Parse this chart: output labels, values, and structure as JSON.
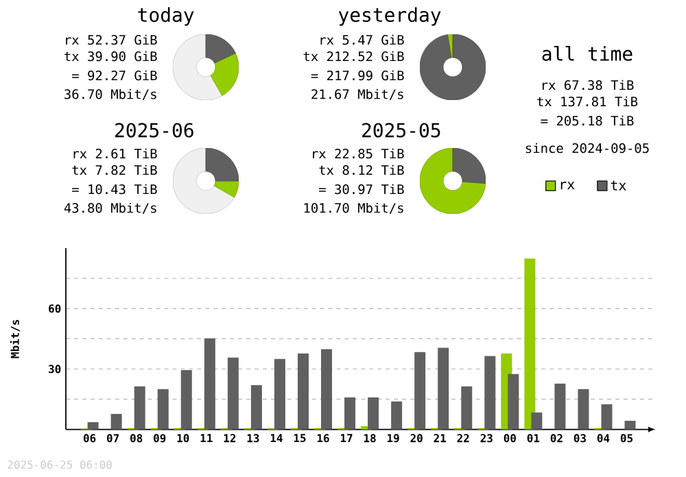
{
  "chart_data": [
    {
      "type": "other",
      "title": "today",
      "annotations": [
        "rx 52.37 GiB",
        "tx 39.90 GiB",
        "= 92.27 GiB",
        "36.70 Mbit/s"
      ]
    },
    {
      "type": "donut",
      "categories": [
        null,
        null,
        null
      ],
      "values": [
        58.3,
        23.7,
        18.0
      ],
      "colors": [
        "#f0f0f0",
        "#94cc00",
        "#606060"
      ]
    },
    {
      "type": "other",
      "title": "yesterday",
      "annotations": [
        "rx 5.47 GiB",
        "tx 212.52 GiB",
        "= 217.99 GiB",
        "21.67 Mbit/s"
      ]
    },
    {
      "type": "donut",
      "categories": [
        null,
        null
      ],
      "values": [
        2.5,
        97.5
      ],
      "colors": [
        "#94cc00",
        "#606060"
      ]
    },
    {
      "type": "other",
      "title": "all time",
      "annotations": [
        "rx 67.38 TiB",
        "tx 137.81 TiB",
        "= 205.18 TiB",
        "since 2024-09-05"
      ]
    },
    {
      "type": "other",
      "title": "2025-06",
      "annotations": [
        "rx 2.61 TiB",
        "tx 7.82 TiB",
        "= 10.43 TiB",
        "43.80 Mbit/s"
      ]
    },
    {
      "type": "donut",
      "categories": [
        null,
        null,
        null
      ],
      "values": [
        66.7,
        8.3,
        25.0
      ],
      "colors": [
        "#f0f0f0",
        "#94cc00",
        "#606060"
      ]
    },
    {
      "type": "other",
      "title": "2025-05",
      "annotations": [
        "rx 22.85 TiB",
        "tx 8.12 TiB",
        "= 30.97 TiB",
        "101.70 Mbit/s"
      ]
    },
    {
      "type": "donut",
      "categories": [
        null,
        null
      ],
      "values": [
        73.8,
        26.2
      ],
      "colors": [
        "#94cc00",
        "#606060"
      ]
    },
    {
      "type": "bar",
      "ylabel": "Mbit/s",
      "categories": [
        "06",
        "07",
        "08",
        "09",
        "10",
        "11",
        "12",
        "13",
        "14",
        "15",
        "16",
        "17",
        "18",
        "19",
        "20",
        "21",
        "22",
        "23",
        "00",
        "01",
        "02",
        "03",
        "04",
        "05"
      ],
      "series": [
        {
          "name": "rx",
          "color": "#94cc00",
          "values": [
            0.5,
            0,
            0.7,
            0.7,
            0.7,
            0.7,
            0.7,
            0.7,
            0.7,
            0.7,
            0.7,
            0.7,
            1.6,
            0,
            0.7,
            0.7,
            0.7,
            0.7,
            37.7,
            84.8,
            0,
            0,
            0.7,
            0
          ]
        },
        {
          "name": "tx",
          "color": "#606060",
          "values": [
            3.6,
            7.7,
            21.4,
            20.0,
            29.5,
            45.2,
            35.7,
            22.0,
            35.0,
            37.7,
            39.8,
            15.9,
            15.9,
            13.9,
            38.4,
            40.5,
            21.4,
            36.4,
            27.5,
            8.4,
            22.7,
            20.0,
            12.5,
            4.3
          ]
        }
      ],
      "ylim": [
        0,
        90
      ],
      "yticks": [
        {
          "value": 15,
          "label": null
        },
        30,
        {
          "value": 45,
          "label": null
        },
        60,
        {
          "value": 75,
          "label": null
        }
      ],
      "grid": "y",
      "legend": "top right",
      "annotations": [
        "2025-06-25 06:00"
      ]
    }
  ]
}
